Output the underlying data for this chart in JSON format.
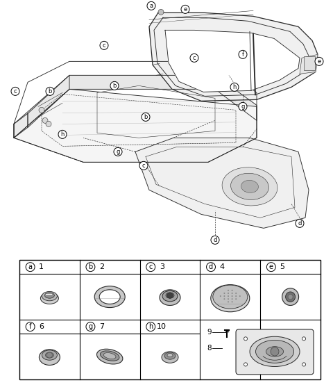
{
  "background_color": "#ffffff",
  "line_color": "#2a2a2a",
  "table": {
    "row1_labels": [
      [
        "a",
        "1"
      ],
      [
        "b",
        "2"
      ],
      [
        "c",
        "3"
      ],
      [
        "d",
        "4"
      ],
      [
        "e",
        "5"
      ]
    ],
    "row2_labels": [
      [
        "f",
        "6"
      ],
      [
        "g",
        "7"
      ],
      [
        "h",
        "10"
      ]
    ],
    "special_labels": [
      "9",
      "8"
    ]
  }
}
